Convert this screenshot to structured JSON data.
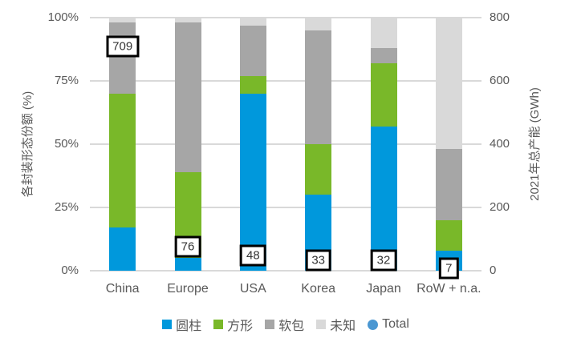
{
  "chart_data": {
    "type": "bar",
    "stacked": true,
    "categories": [
      "China",
      "Europe",
      "USA",
      "Korea",
      "Japan",
      "RoW + n.a."
    ],
    "category_keys": [
      "china",
      "europe",
      "usa",
      "korea",
      "japan",
      "row-na"
    ],
    "series": [
      {
        "key": "cylinder",
        "name": "圆柱",
        "color": "#0098DC",
        "axis": "left",
        "unit": "%",
        "values": [
          17,
          5,
          70,
          30,
          57,
          8
        ]
      },
      {
        "key": "prismatic",
        "name": "方形",
        "color": "#79B829",
        "axis": "left",
        "unit": "%",
        "values": [
          53,
          34,
          7,
          20,
          25,
          12
        ]
      },
      {
        "key": "pouch",
        "name": "软包",
        "color": "#A6A6A6",
        "axis": "left",
        "unit": "%",
        "values": [
          28,
          59,
          20,
          45,
          6,
          28
        ]
      },
      {
        "key": "unknown",
        "name": "未知",
        "color": "#D9D9D9",
        "axis": "left",
        "unit": "%",
        "values": [
          2,
          2,
          3,
          5,
          12,
          52
        ]
      }
    ],
    "total_series": {
      "key": "total",
      "name": "Total",
      "color": "#4A97D2",
      "axis": "right",
      "unit": "GWh",
      "values": [
        709,
        76,
        48,
        33,
        32,
        7
      ]
    },
    "left_axis": {
      "title": "各封装形态份额 (%)",
      "ticks": [
        "0%",
        "25%",
        "50%",
        "75%",
        "100%"
      ],
      "min": 0,
      "max": 100
    },
    "right_axis": {
      "title": "2021年总产能 (GWh)",
      "ticks": [
        "0",
        "200",
        "400",
        "600",
        "800"
      ],
      "min": 0,
      "max": 800
    },
    "legend": [
      "圆柱",
      "方形",
      "软包",
      "未知",
      "Total"
    ],
    "grid": true,
    "legend_position": "bottom",
    "colors": {
      "grid": "#D9D9D9",
      "axis_text": "#595959",
      "label_box_border": "#000000",
      "label_box_bg": "#FFFFFF",
      "label_text": "#333333"
    }
  }
}
